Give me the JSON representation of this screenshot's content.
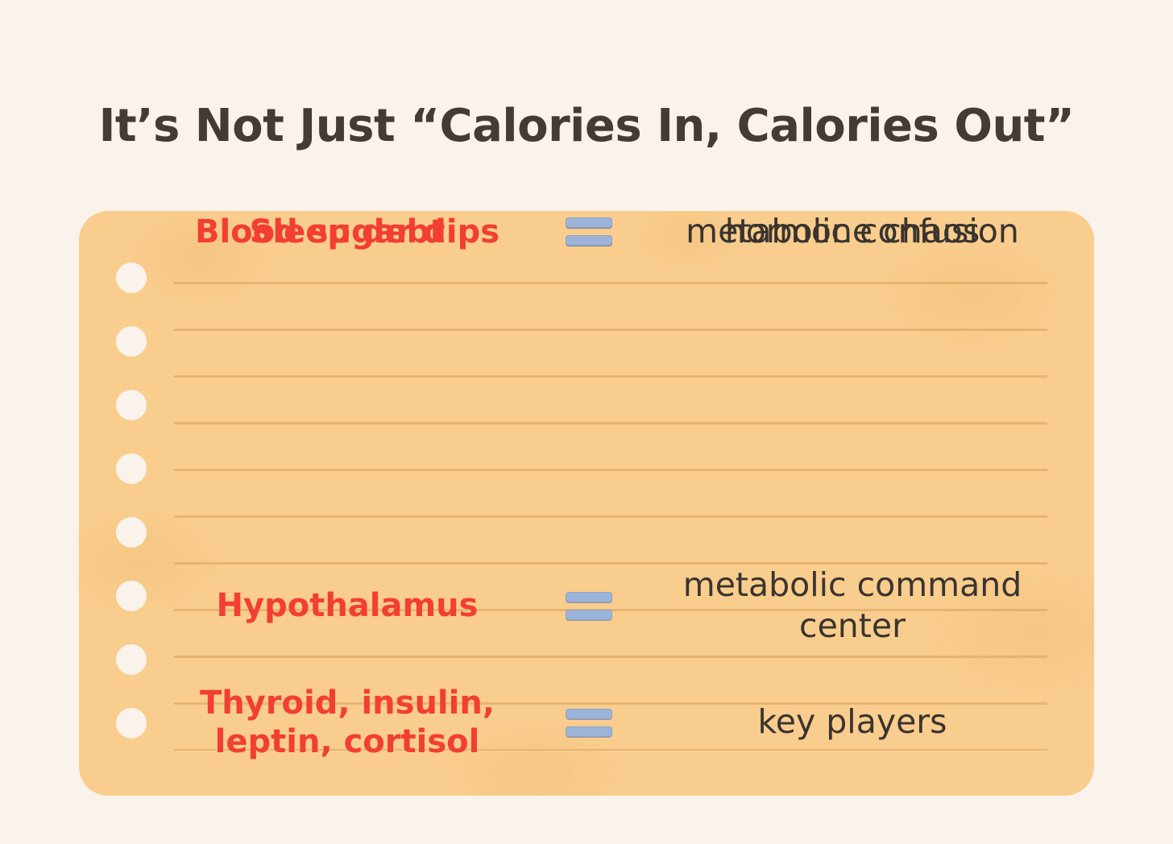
{
  "title": "It’s Not Just “Calories In, Calories Out”",
  "rows": [
    {
      "term": "Hypothalamus",
      "definition": "metabolic command center"
    },
    {
      "term": "Thyroid, insulin, leptin, cortisol",
      "definition": "key players"
    },
    {
      "term": "Blood sugar dips",
      "definition": "hormone chaos"
    },
    {
      "term": "Sleep debt",
      "definition": "metabolic confusion"
    }
  ],
  "colors": {
    "background": "#faf3ec",
    "card": "#f9cd8d",
    "term_text": "#f23e33",
    "definition_text": "#39342f",
    "title_text": "#433c35",
    "equals_bar": "#9db4da",
    "rule_line": "#cb944d"
  }
}
